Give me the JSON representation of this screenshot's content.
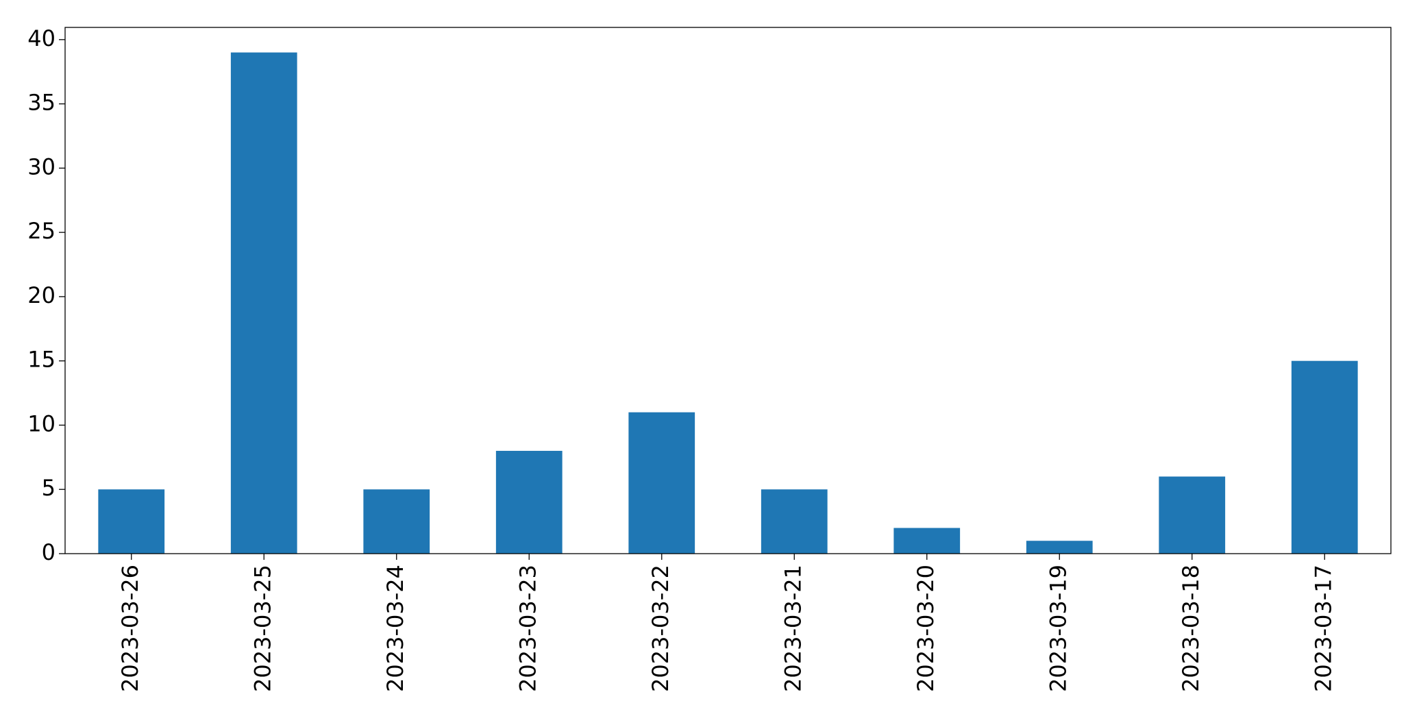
{
  "chart_data": {
    "type": "bar",
    "categories": [
      "2023-03-26",
      "2023-03-25",
      "2023-03-24",
      "2023-03-23",
      "2023-03-22",
      "2023-03-21",
      "2023-03-20",
      "2023-03-19",
      "2023-03-18",
      "2023-03-17"
    ],
    "values": [
      5,
      39,
      5,
      8,
      11,
      5,
      2,
      1,
      6,
      15
    ],
    "color": "#1f77b4",
    "ylim": [
      0,
      40.95
    ],
    "yticks": [
      0,
      5,
      10,
      15,
      20,
      25,
      30,
      35,
      40
    ],
    "grid": false
  }
}
